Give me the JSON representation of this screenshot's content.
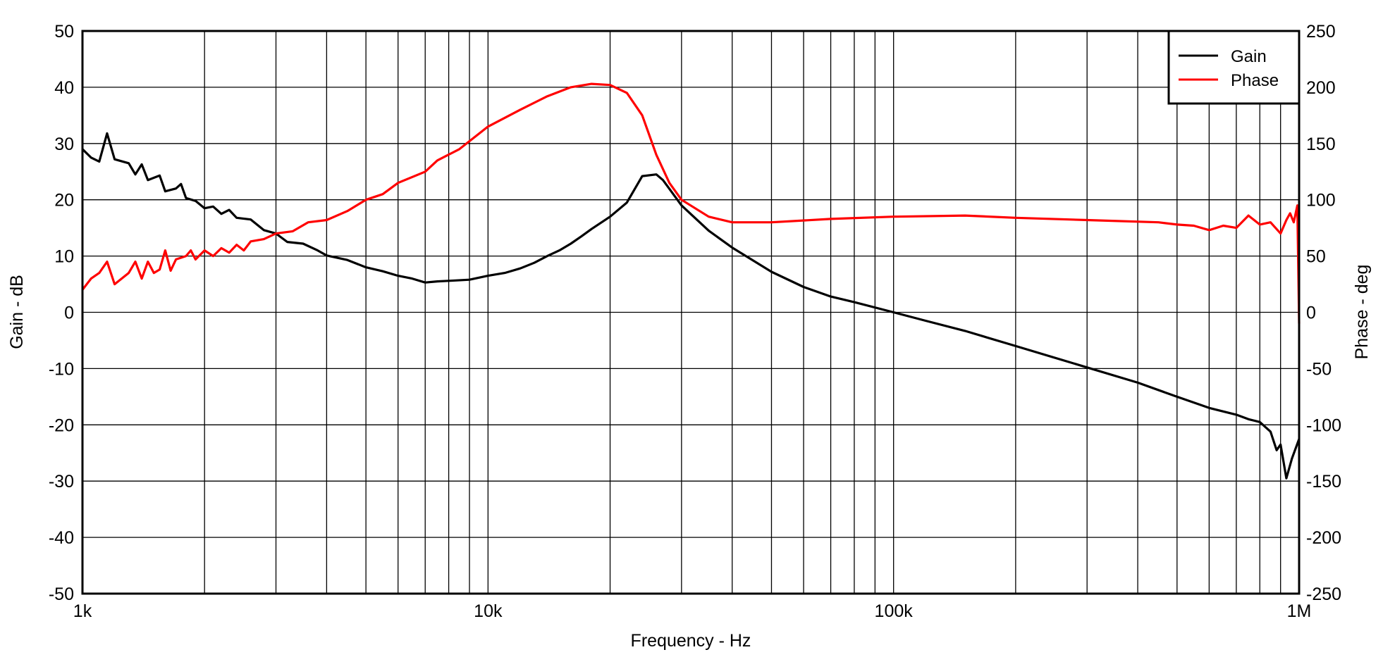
{
  "chart_data": {
    "type": "line",
    "xlabel": "Frequency - Hz",
    "ylabel": "Gain - dB",
    "y2label": "Phase - deg",
    "xscale": "log",
    "xlim": [
      1000,
      1000000
    ],
    "ylim": [
      -50,
      50
    ],
    "y2lim": [
      -250,
      250
    ],
    "grid": true,
    "legend_position": "top-right",
    "x_tick_labels": [
      {
        "value": 1000,
        "label": "1k"
      },
      {
        "value": 10000,
        "label": "10k"
      },
      {
        "value": 100000,
        "label": "100k"
      },
      {
        "value": 1000000,
        "label": "1M"
      }
    ],
    "y_ticks": [
      50,
      40,
      30,
      20,
      10,
      0,
      -10,
      -20,
      -30,
      -40,
      -50
    ],
    "y2_ticks": [
      250,
      200,
      150,
      100,
      50,
      0,
      -50,
      -100,
      -150,
      -200,
      -250
    ],
    "series": [
      {
        "name": "Gain",
        "axis": "left",
        "color": "#000000",
        "x": [
          1000,
          1050,
          1100,
          1150,
          1200,
          1300,
          1350,
          1400,
          1450,
          1550,
          1600,
          1700,
          1750,
          1800,
          1900,
          2000,
          2100,
          2200,
          2300,
          2400,
          2600,
          2800,
          3000,
          3200,
          3500,
          3800,
          4000,
          4500,
          5000,
          5500,
          6000,
          6500,
          7000,
          7500,
          8000,
          9000,
          10000,
          11000,
          12000,
          13000,
          14000,
          15000,
          16000,
          17000,
          18000,
          20000,
          22000,
          24000,
          26000,
          27000,
          30000,
          35000,
          40000,
          50000,
          60000,
          70000,
          80000,
          100000,
          120000,
          150000,
          200000,
          300000,
          400000,
          500000,
          600000,
          700000,
          750000,
          800000,
          850000,
          880000,
          900000,
          930000,
          960000,
          1000000
        ],
        "y": [
          29,
          27.5,
          26.8,
          31.8,
          27.2,
          26.5,
          24.5,
          26.3,
          23.5,
          24.3,
          21.5,
          22,
          22.8,
          20.3,
          19.8,
          18.5,
          18.8,
          17.5,
          18.2,
          16.8,
          16.5,
          14.6,
          14,
          12.5,
          12.2,
          11,
          10.1,
          9.3,
          8,
          7.3,
          6.5,
          6,
          5.3,
          5.5,
          5.6,
          5.8,
          6.5,
          7,
          7.8,
          8.8,
          10,
          11,
          12.2,
          13.5,
          14.8,
          17,
          19.5,
          24.2,
          24.5,
          23.5,
          19,
          14.5,
          11.5,
          7.2,
          4.5,
          2.8,
          1.8,
          0,
          -1.5,
          -3.3,
          -6,
          -9.8,
          -12.5,
          -15,
          -17,
          -18.2,
          -19,
          -19.5,
          -21.2,
          -24.5,
          -23.5,
          -29.5,
          -26,
          -22.5
        ]
      },
      {
        "name": "Phase",
        "axis": "right",
        "color": "#ff0000",
        "x": [
          1000,
          1050,
          1100,
          1150,
          1200,
          1300,
          1350,
          1400,
          1450,
          1500,
          1550,
          1600,
          1650,
          1700,
          1800,
          1850,
          1900,
          2000,
          2100,
          2200,
          2300,
          2400,
          2500,
          2600,
          2800,
          3000,
          3300,
          3600,
          4000,
          4500,
          5000,
          5500,
          6000,
          7000,
          7500,
          8500,
          10000,
          12000,
          14000,
          16000,
          18000,
          20000,
          22000,
          24000,
          26000,
          28000,
          30000,
          35000,
          40000,
          50000,
          70000,
          100000,
          150000,
          200000,
          300000,
          450000,
          500000,
          550000,
          600000,
          650000,
          700000,
          750000,
          800000,
          850000,
          900000,
          930000,
          950000,
          970000,
          990000,
          1000000
        ],
        "y": [
          20,
          30,
          35,
          45,
          25,
          35,
          45,
          30,
          45,
          35,
          38,
          55,
          37,
          47,
          50,
          55,
          47,
          55,
          50,
          57,
          53,
          60,
          55,
          63,
          65,
          70,
          72,
          80,
          82,
          90,
          100,
          105,
          115,
          125,
          135,
          145,
          165,
          180,
          192,
          200,
          203,
          202,
          195,
          175,
          140,
          115,
          100,
          85,
          80,
          80,
          83,
          85,
          86,
          84,
          82,
          80,
          78,
          77,
          73,
          77,
          75,
          86,
          78,
          80,
          70,
          82,
          88,
          80,
          95,
          -10
        ]
      }
    ]
  }
}
